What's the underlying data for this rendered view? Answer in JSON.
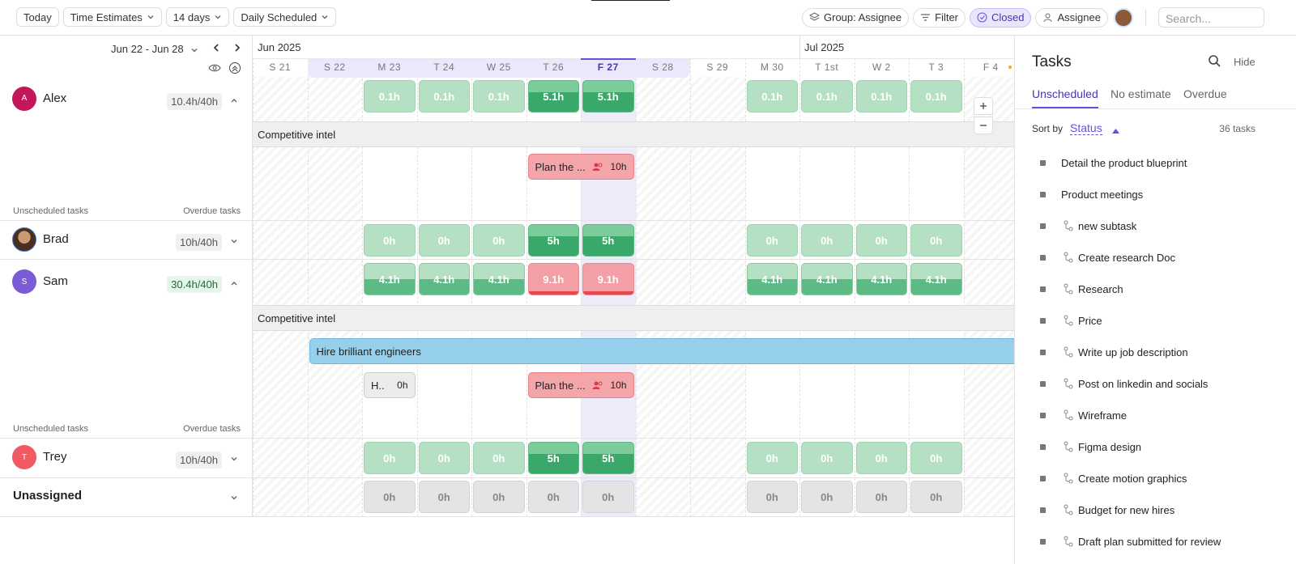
{
  "toolbar": {
    "left": [
      "Today",
      "Time Estimates",
      "14 days",
      "Daily Scheduled"
    ],
    "right": [
      "Group: Assignee",
      "Filter",
      "Closed",
      "Assignee"
    ],
    "search": "Search..."
  },
  "range": "Jun 22 - Jun 28",
  "months": [
    "Jun 2025",
    "Jul 2025"
  ],
  "days": [
    "S 21",
    "S 22",
    "M 23",
    "T 24",
    "W 25",
    "T 26",
    "F 27",
    "S 28",
    "S 29",
    "M 30",
    "T 1st",
    "W 2",
    "T 3",
    "F 4"
  ],
  "labels": {
    "unscheduled": "Unscheduled tasks",
    "overdue": "Overdue tasks"
  },
  "rows": [
    {
      "name": "Alex",
      "initial": "A",
      "capacity": "10.4h/40h",
      "expanded": true,
      "group": "Competitive intel",
      "cells": [
        null,
        null,
        {
          "label": "0.1h",
          "level": "light"
        },
        {
          "label": "0.1h",
          "level": "light"
        },
        {
          "label": "0.1h",
          "level": "light"
        },
        {
          "label": "5.1h",
          "level": "split"
        },
        {
          "label": "5.1h",
          "level": "split"
        },
        null,
        null,
        {
          "label": "0.1h",
          "level": "light"
        },
        {
          "label": "0.1h",
          "level": "light"
        },
        {
          "label": "0.1h",
          "level": "light"
        },
        {
          "label": "0.1h",
          "level": "light"
        },
        null
      ],
      "tasks": [
        {
          "label": "Plan the ...",
          "hours": "10h"
        }
      ]
    },
    {
      "name": "Brad",
      "capacity": "10h/40h",
      "expanded": false,
      "cells": [
        null,
        null,
        {
          "label": "0h",
          "level": "light"
        },
        {
          "label": "0h",
          "level": "light"
        },
        {
          "label": "0h",
          "level": "light"
        },
        {
          "label": "5h",
          "level": "split"
        },
        {
          "label": "5h",
          "level": "split"
        },
        null,
        null,
        {
          "label": "0h",
          "level": "light"
        },
        {
          "label": "0h",
          "level": "light"
        },
        {
          "label": "0h",
          "level": "light"
        },
        {
          "label": "0h",
          "level": "light"
        },
        null
      ]
    },
    {
      "name": "Sam",
      "initial": "S",
      "capacity": "30.4h/40h",
      "expanded": true,
      "group": "Competitive intel",
      "cells": [
        null,
        null,
        {
          "label": "4.1h",
          "level": "half"
        },
        {
          "label": "4.1h",
          "level": "half"
        },
        {
          "label": "4.1h",
          "level": "half"
        },
        {
          "label": "9.1h",
          "level": "over"
        },
        {
          "label": "9.1h",
          "level": "over"
        },
        null,
        null,
        {
          "label": "4.1h",
          "level": "half"
        },
        {
          "label": "4.1h",
          "level": "half"
        },
        {
          "label": "4.1h",
          "level": "half"
        },
        {
          "label": "4.1h",
          "level": "half"
        },
        null
      ],
      "tasks": [
        {
          "label": "Hire brilliant engineers"
        },
        {
          "label": "H..",
          "hours": "0h"
        },
        {
          "label": "Plan the ...",
          "hours": "10h"
        }
      ]
    },
    {
      "name": "Trey",
      "initial": "T",
      "capacity": "10h/40h",
      "expanded": false,
      "cells": [
        null,
        null,
        {
          "label": "0h",
          "level": "light"
        },
        {
          "label": "0h",
          "level": "light"
        },
        {
          "label": "0h",
          "level": "light"
        },
        {
          "label": "5h",
          "level": "split"
        },
        {
          "label": "5h",
          "level": "split"
        },
        null,
        null,
        {
          "label": "0h",
          "level": "light"
        },
        {
          "label": "0h",
          "level": "light"
        },
        {
          "label": "0h",
          "level": "light"
        },
        {
          "label": "0h",
          "level": "light"
        },
        null
      ]
    },
    {
      "name": "Unassigned",
      "expanded": false,
      "cells": [
        null,
        null,
        {
          "label": "0h",
          "level": "empty"
        },
        {
          "label": "0h",
          "level": "empty"
        },
        {
          "label": "0h",
          "level": "empty"
        },
        {
          "label": "0h",
          "level": "empty"
        },
        {
          "label": "0h",
          "level": "empty"
        },
        null,
        null,
        {
          "label": "0h",
          "level": "empty"
        },
        {
          "label": "0h",
          "level": "empty"
        },
        {
          "label": "0h",
          "level": "empty"
        },
        {
          "label": "0h",
          "level": "empty"
        },
        null
      ]
    }
  ],
  "panel": {
    "title": "Tasks",
    "hide": "Hide",
    "tabs": [
      "Unscheduled",
      "No estimate",
      "Overdue"
    ],
    "sort_label": "Sort by",
    "sort_value": "Status",
    "count": "36 tasks",
    "items": [
      {
        "label": "Detail the product blueprint",
        "subtask": false
      },
      {
        "label": "Product meetings",
        "subtask": false
      },
      {
        "label": "new subtask",
        "subtask": true
      },
      {
        "label": "Create research Doc",
        "subtask": true
      },
      {
        "label": "Research",
        "subtask": true
      },
      {
        "label": "Price",
        "subtask": true
      },
      {
        "label": "Write up job description",
        "subtask": true
      },
      {
        "label": "Post on linkedin and socials",
        "subtask": true
      },
      {
        "label": "Wireframe",
        "subtask": true
      },
      {
        "label": "Figma design",
        "subtask": true
      },
      {
        "label": "Create motion graphics",
        "subtask": true
      },
      {
        "label": "Budget for new hires",
        "subtask": true
      },
      {
        "label": "Draft plan submitted for review",
        "subtask": true
      }
    ]
  }
}
